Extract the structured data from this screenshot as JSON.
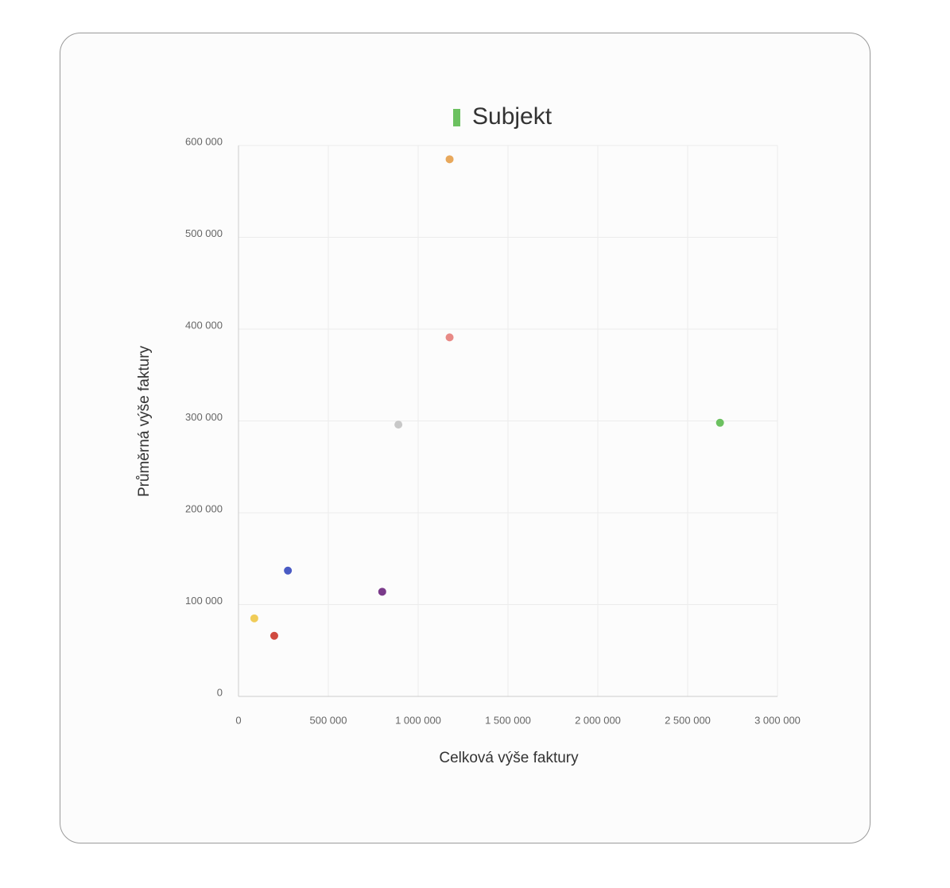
{
  "chart_data": {
    "type": "scatter",
    "xlabel": "Celková výše faktury",
    "ylabel": "Průměrná výše faktury",
    "series": [
      {
        "name": "Subjekt",
        "color": "#6cc160",
        "x": [
          1175000,
          1175000,
          890000,
          2680000,
          275000,
          800000,
          88000,
          199000
        ],
        "values": [
          585000,
          391000,
          296000,
          298000,
          137000,
          114000,
          85000,
          66000
        ],
        "point_colors": [
          "#e8a85c",
          "#e88a86",
          "#c8c8c8",
          "#6cc160",
          "#4a5bc4",
          "#7a3a8a",
          "#f0cc58",
          "#d04a40"
        ]
      }
    ],
    "xlim": [
      0,
      3000000
    ],
    "xticks": [
      0,
      {
        "value": 500000,
        "label": "500 000"
      },
      {
        "value": 1000000,
        "label": "1 000 000"
      },
      {
        "value": 1500000,
        "label": "1 500 000"
      },
      {
        "value": 2000000,
        "label": "2 000 000"
      },
      {
        "value": 2500000,
        "label": "2 500 000"
      },
      {
        "value": 3000000,
        "label": "3 000 000"
      }
    ],
    "ylim": [
      0,
      600000
    ],
    "yticks": [
      0,
      {
        "value": 100000,
        "label": "100 000"
      },
      {
        "value": 200000,
        "label": "200 000"
      },
      {
        "value": 300000,
        "label": "300 000"
      },
      {
        "value": 400000,
        "label": "400 000"
      },
      {
        "value": 500000,
        "label": "500 000"
      },
      {
        "value": 600000,
        "label": "600 000"
      }
    ],
    "grid": true
  }
}
